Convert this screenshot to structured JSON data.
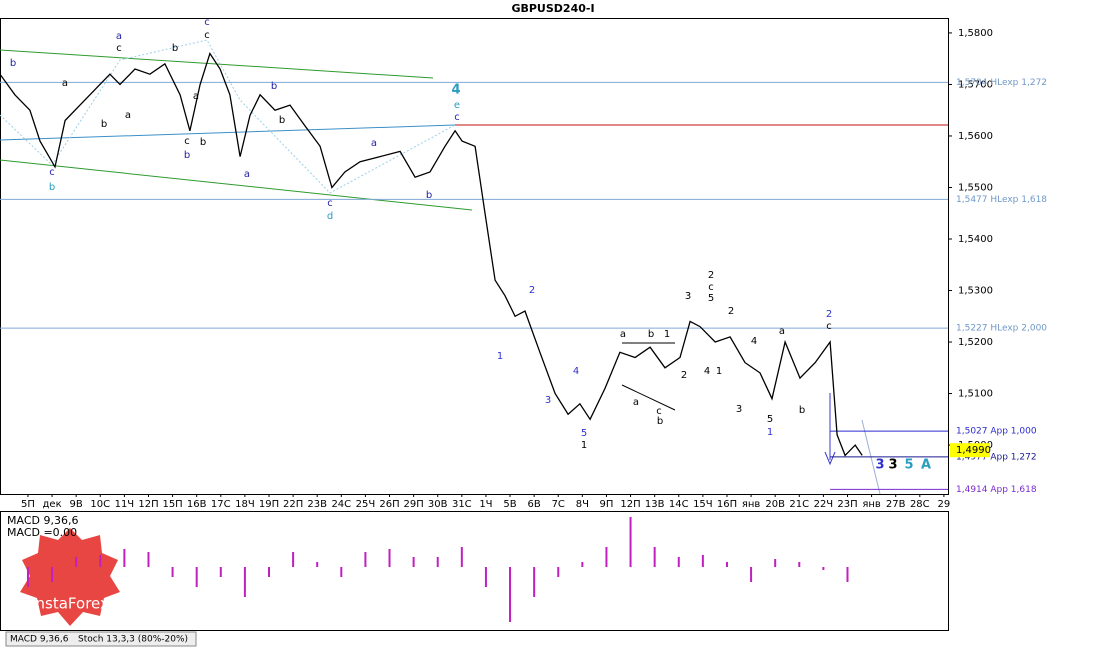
{
  "chart_data": {
    "type": "line",
    "title": "GBPUSD240-I",
    "xlim": [
      -1.16,
      38.17
    ],
    "ylim": [
      1.4905,
      1.5829
    ],
    "xticks": [
      {
        "value": 0,
        "label": "5П"
      },
      {
        "value": 1,
        "label": "дек"
      },
      {
        "value": 2,
        "label": "9В"
      },
      {
        "value": 3,
        "label": "10С"
      },
      {
        "value": 4,
        "label": "11Ч"
      },
      {
        "value": 5,
        "label": "12П"
      },
      {
        "value": 6,
        "label": "15П"
      },
      {
        "value": 7,
        "label": "16В"
      },
      {
        "value": 8,
        "label": "17С"
      },
      {
        "value": 9,
        "label": "18Ч"
      },
      {
        "value": 10,
        "label": "19П"
      },
      {
        "value": 11,
        "label": "22П"
      },
      {
        "value": 12,
        "label": "23В"
      },
      {
        "value": 13,
        "label": "24С"
      },
      {
        "value": 14,
        "label": "25Ч"
      },
      {
        "value": 15,
        "label": "26П"
      },
      {
        "value": 16,
        "label": "29П"
      },
      {
        "value": 17,
        "label": "30В"
      },
      {
        "value": 18,
        "label": "31С"
      },
      {
        "value": 19,
        "label": "1Ч"
      },
      {
        "value": 20,
        "label": "5В"
      },
      {
        "value": 21,
        "label": "6В"
      },
      {
        "value": 22,
        "label": "7С"
      },
      {
        "value": 23,
        "label": "8Ч"
      },
      {
        "value": 24,
        "label": "9П"
      },
      {
        "value": 25,
        "label": "12П"
      },
      {
        "value": 26,
        "label": "13В"
      },
      {
        "value": 27,
        "label": "14С"
      },
      {
        "value": 28,
        "label": "15Ч"
      },
      {
        "value": 29,
        "label": "16П"
      },
      {
        "value": 30,
        "label": "янв"
      },
      {
        "value": 31,
        "label": "20В"
      },
      {
        "value": 32,
        "label": "21С"
      },
      {
        "value": 33,
        "label": "22Ч"
      },
      {
        "value": 34,
        "label": "23П"
      },
      {
        "value": 35,
        "label": "янв"
      },
      {
        "value": 36,
        "label": "27В"
      },
      {
        "value": 37,
        "label": "28С"
      },
      {
        "value": 38,
        "label": "29"
      }
    ],
    "yticks": [
      {
        "value": 1.58,
        "label": "1,5800"
      },
      {
        "value": 1.57,
        "label": "1,5700"
      },
      {
        "value": 1.56,
        "label": "1,5600"
      },
      {
        "value": 1.55,
        "label": "1,5500"
      },
      {
        "value": 1.54,
        "label": "1,5400"
      },
      {
        "value": 1.53,
        "label": "1,5300"
      },
      {
        "value": 1.52,
        "label": "1,5200"
      },
      {
        "value": 1.51,
        "label": "1,5100"
      },
      {
        "value": 1.5,
        "label": "1,5000"
      }
    ],
    "current_price": {
      "value": 1.499,
      "label": "1,4990"
    },
    "levels": [
      {
        "value": 1.5704,
        "label": "1,5704 HLexp 1,272",
        "color": "#7fa9d6",
        "start": -1.16
      },
      {
        "value": 1.5477,
        "label": "1,5477 HLexp 1,618",
        "color": "#7fa9d6",
        "start": -1.16
      },
      {
        "value": 1.5227,
        "label": "1,5227 HLexp 2,000",
        "color": "#7fa9d6",
        "start": -1.16
      },
      {
        "value": 1.5027,
        "label": "1,5027 App 1,000",
        "color": "#2b2bd0",
        "start": 33.28
      },
      {
        "value": 1.4977,
        "label": "1,4977 App 1,272",
        "color": "#1a1a90",
        "start": 33.28
      },
      {
        "value": 1.4914,
        "label": "1,4914 App 1,618",
        "color": "#7a2bd0",
        "start": 33.28
      }
    ],
    "series": [
      {
        "name": "GBPUSD",
        "color": "#000000",
        "x": [
          -1.16,
          -0.54,
          0.08,
          0.5,
          1.12,
          1.54,
          2.16,
          2.78,
          3.4,
          3.82,
          4.44,
          5.06,
          5.68,
          6.31,
          6.72,
          7.14,
          7.55,
          7.97,
          8.38,
          8.8,
          9.21,
          9.63,
          10.25,
          10.87,
          11.49,
          12.12,
          12.61,
          13.15,
          13.78,
          14.61,
          15.44,
          16.06,
          16.68,
          17.3,
          17.72,
          18.01,
          18.55,
          18.96,
          19.38,
          19.79,
          20.21,
          20.62,
          21.24,
          21.87,
          22.41,
          22.9,
          23.32,
          23.94,
          24.56,
          25.19,
          25.81,
          26.43,
          27.05,
          27.47,
          27.88,
          28.51,
          29.13,
          29.75,
          30.37,
          30.87,
          31.41,
          32.03,
          32.66,
          33.28,
          33.57,
          33.9,
          34.32,
          34.61
        ],
        "values": [
          1.572,
          1.568,
          1.565,
          1.559,
          1.554,
          1.563,
          1.566,
          1.569,
          1.572,
          1.57,
          1.573,
          1.572,
          1.574,
          1.568,
          1.561,
          1.57,
          1.576,
          1.573,
          1.568,
          1.556,
          1.564,
          1.568,
          1.565,
          1.566,
          1.562,
          1.558,
          1.55,
          1.553,
          1.555,
          1.556,
          1.557,
          1.552,
          1.553,
          1.558,
          1.561,
          1.559,
          1.558,
          1.545,
          1.532,
          1.529,
          1.525,
          1.526,
          1.518,
          1.51,
          1.506,
          1.508,
          1.505,
          1.511,
          1.518,
          1.517,
          1.519,
          1.515,
          1.517,
          1.524,
          1.523,
          1.52,
          1.521,
          1.516,
          1.514,
          1.509,
          1.52,
          1.513,
          1.516,
          1.52,
          1.502,
          1.498,
          1.5,
          1.498
        ]
      }
    ],
    "macd": {
      "label": "MACD 9,36,6",
      "value_label": "MACD =0.00",
      "color": "#c020c0",
      "ylim": [
        -0.0063,
        0.0055
      ],
      "values": [
        -0.002,
        -0.0015,
        0.001,
        0.0012,
        0.0018,
        0.0015,
        -0.001,
        -0.002,
        -0.001,
        -0.003,
        -0.001,
        0.0015,
        0.0005,
        -0.001,
        0.0015,
        0.0018,
        0.001,
        0.001,
        0.002,
        -0.002,
        -0.0055,
        -0.003,
        -0.001,
        0.0005,
        0.002,
        0.005,
        0.002,
        0.001,
        0.0012,
        0.0005,
        -0.0015,
        0.0008,
        0.0005,
        -0.0003,
        -0.0015
      ]
    },
    "tabs": [
      "MACD 9,36,6",
      "Stoch 13,3,3 (80%-20%)"
    ],
    "logo": "InstaForex",
    "annotations": [
      {
        "text": "b",
        "color": "#1f1fa8"
      },
      {
        "text": "c",
        "color": "#1f1fa8"
      },
      {
        "text": "b",
        "color": "#2a9dc0"
      },
      {
        "text": "a",
        "color": "#1f1fa8"
      },
      {
        "text": "c",
        "color": "#000000"
      },
      {
        "text": "b",
        "color": "#000000"
      },
      {
        "text": "c",
        "color": "#1f1fa8"
      },
      {
        "text": "c",
        "color": "#000000"
      },
      {
        "text": "a",
        "color": "#000000"
      },
      {
        "text": "b",
        "color": "#000000"
      },
      {
        "text": "a",
        "color": "#000000"
      },
      {
        "text": "a",
        "color": "#000000"
      },
      {
        "text": "c",
        "color": "#000000"
      },
      {
        "text": "b",
        "color": "#1f1fa8"
      },
      {
        "text": "b",
        "color": "#000000"
      },
      {
        "text": "a",
        "color": "#1f1fa8"
      },
      {
        "text": "b",
        "color": "#1f1fa8"
      },
      {
        "text": "b",
        "color": "#000000"
      },
      {
        "text": "c",
        "color": "#1f1fa8"
      },
      {
        "text": "d",
        "color": "#2a9dc0"
      },
      {
        "text": "a",
        "color": "#1f1fa8"
      },
      {
        "text": "b",
        "color": "#1f1fa8"
      },
      {
        "text": "4",
        "color": "#2a9dc0"
      },
      {
        "text": "e",
        "color": "#2a9dc0"
      },
      {
        "text": "c",
        "color": "#1f1fa8"
      },
      {
        "text": "1",
        "color": "#3030d0"
      },
      {
        "text": "2",
        "color": "#3030d0"
      },
      {
        "text": "3",
        "color": "#3030d0"
      },
      {
        "text": "4",
        "color": "#3030d0"
      },
      {
        "text": "5",
        "color": "#3030d0"
      },
      {
        "text": "1",
        "color": "#000000"
      },
      {
        "text": "a",
        "color": "#000000"
      },
      {
        "text": "b",
        "color": "#000000"
      },
      {
        "text": "1",
        "color": "#000000"
      },
      {
        "text": "a",
        "color": "#000000"
      },
      {
        "text": "c",
        "color": "#000000"
      },
      {
        "text": "b",
        "color": "#000000"
      },
      {
        "text": "2",
        "color": "#000000"
      },
      {
        "text": "3",
        "color": "#000000"
      },
      {
        "text": "2",
        "color": "#000000"
      },
      {
        "text": "c",
        "color": "#000000"
      },
      {
        "text": "5",
        "color": "#000000"
      },
      {
        "text": "4",
        "color": "#000000"
      },
      {
        "text": "1",
        "color": "#000000"
      },
      {
        "text": "2",
        "color": "#000000"
      },
      {
        "text": "3",
        "color": "#000000"
      },
      {
        "text": "4",
        "color": "#000000"
      },
      {
        "text": "5",
        "color": "#000000"
      },
      {
        "text": "1",
        "color": "#3030d0"
      },
      {
        "text": "a",
        "color": "#000000"
      },
      {
        "text": "b",
        "color": "#000000"
      },
      {
        "text": "2",
        "color": "#3030d0"
      },
      {
        "text": "c",
        "color": "#000000"
      },
      {
        "text": "3",
        "color": "#3030d0"
      },
      {
        "text": "3",
        "color": "#000000"
      },
      {
        "text": "5",
        "color": "#2a9dc0"
      },
      {
        "text": "A",
        "color": "#2a9dc0"
      }
    ]
  }
}
